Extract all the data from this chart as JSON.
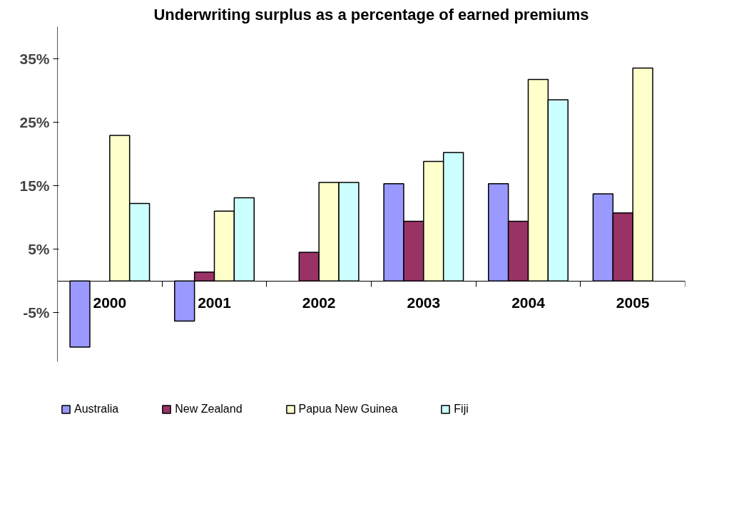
{
  "chart_data": {
    "type": "bar",
    "title": "Underwriting surplus as a percentage of earned premiums",
    "categories": [
      "2000",
      "2001",
      "2002",
      "2003",
      "2004",
      "2005"
    ],
    "series": [
      {
        "name": "Australia",
        "color": "#9999ff",
        "values": [
          -10.4,
          -6.3,
          null,
          15.3,
          15.3,
          13.7
        ]
      },
      {
        "name": "New Zealand",
        "color": "#993366",
        "values": [
          null,
          1.4,
          4.5,
          9.4,
          9.4,
          10.7
        ]
      },
      {
        "name": "Papua New Guinea",
        "color": "#ffffcc",
        "values": [
          22.9,
          11.0,
          15.5,
          18.8,
          31.7,
          33.5
        ]
      },
      {
        "name": "Fiji",
        "color": "#ccffff",
        "values": [
          12.2,
          13.1,
          15.5,
          20.2,
          28.5,
          null
        ]
      }
    ],
    "ylim": [
      -12.7,
      40
    ],
    "yticks": [
      {
        "value": -5,
        "label": "-5%"
      },
      {
        "value": 5,
        "label": "5%"
      },
      {
        "value": 15,
        "label": "15%"
      },
      {
        "value": 25,
        "label": "25%"
      },
      {
        "value": 35,
        "label": "35%"
      }
    ],
    "grid": false,
    "legend": "bottom"
  }
}
